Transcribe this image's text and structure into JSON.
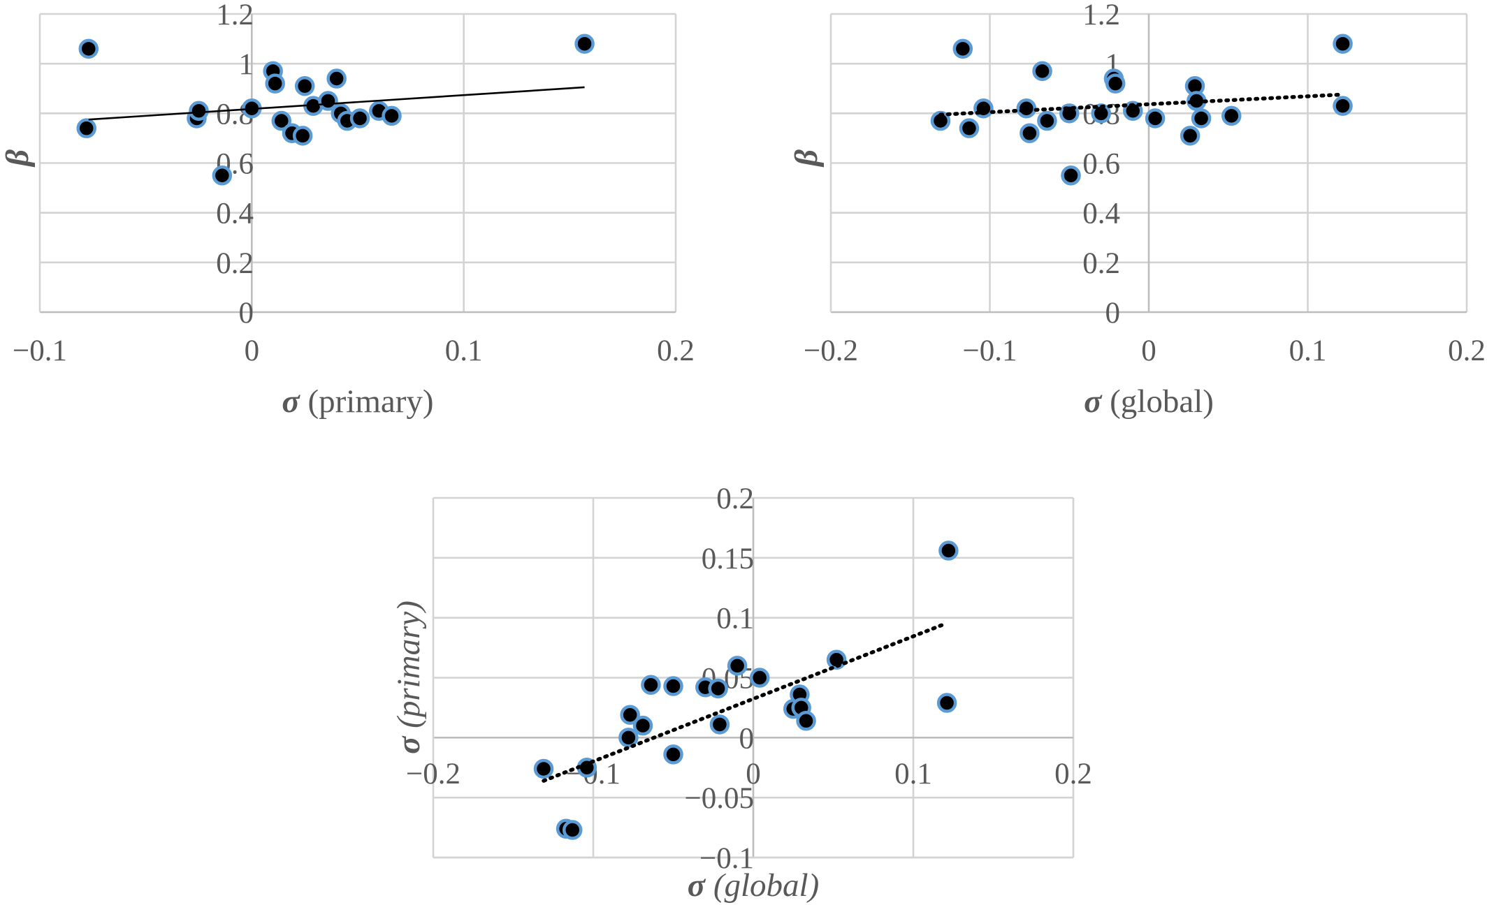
{
  "chart_data": [
    {
      "type": "scatter",
      "xlabel": {
        "symbol": "σ",
        "text": "(primary)"
      },
      "ylabel": "β",
      "xlim": [
        -0.1,
        0.2
      ],
      "ylim": [
        0,
        1.2
      ],
      "x_ticks": [
        -0.1,
        0,
        0.1,
        0.2
      ],
      "x_tick_labels": [
        "−0.1",
        "0",
        "0.1",
        "0.2"
      ],
      "y_ticks": [
        0,
        0.2,
        0.4,
        0.6,
        0.8,
        1,
        1.2
      ],
      "y_tick_labels": [
        "0",
        "0.2",
        "0.4",
        "0.6",
        "0.8",
        "1",
        "1.2"
      ],
      "x_gridlines": [
        0.1,
        0.2
      ],
      "y_gridlines": [
        0.2,
        0.4,
        0.6,
        0.8,
        1,
        1.2
      ],
      "grid": true,
      "points": [
        [
          -0.077,
          1.06
        ],
        [
          -0.078,
          0.74
        ],
        [
          -0.026,
          0.78
        ],
        [
          -0.025,
          0.81
        ],
        [
          -0.014,
          0.55
        ],
        [
          0.0,
          0.82
        ],
        [
          0.01,
          0.97
        ],
        [
          0.011,
          0.92
        ],
        [
          0.014,
          0.77
        ],
        [
          0.019,
          0.72
        ],
        [
          0.024,
          0.71
        ],
        [
          0.025,
          0.91
        ],
        [
          0.029,
          0.83
        ],
        [
          0.036,
          0.85
        ],
        [
          0.04,
          0.94
        ],
        [
          0.042,
          0.8
        ],
        [
          0.045,
          0.77
        ],
        [
          0.051,
          0.78
        ],
        [
          0.06,
          0.81
        ],
        [
          0.066,
          0.79
        ],
        [
          0.157,
          1.08
        ]
      ],
      "trendline": {
        "style": "solid",
        "from": [
          -0.077,
          0.775
        ],
        "to": [
          0.157,
          0.905
        ]
      }
    },
    {
      "type": "scatter",
      "xlabel": {
        "symbol": "σ",
        "text": "(global)"
      },
      "ylabel": "β",
      "xlim": [
        -0.2,
        0.2
      ],
      "ylim": [
        0,
        1.2
      ],
      "x_ticks": [
        -0.2,
        -0.1,
        0,
        0.1,
        0.2
      ],
      "x_tick_labels": [
        "−0.2",
        "−0.1",
        "0",
        "0.1",
        "0.2"
      ],
      "y_ticks": [
        0,
        0.2,
        0.4,
        0.6,
        0.8,
        1,
        1.2
      ],
      "y_tick_labels": [
        "0",
        "0.2",
        "0.4",
        "0.6",
        "0.8",
        "1",
        "1.2"
      ],
      "x_gridlines": [
        -0.1,
        0.1,
        0.2
      ],
      "y_gridlines": [
        0.2,
        0.4,
        0.6,
        0.8,
        1,
        1.2
      ],
      "grid": true,
      "points": [
        [
          -0.131,
          0.77
        ],
        [
          -0.117,
          1.06
        ],
        [
          -0.113,
          0.74
        ],
        [
          -0.104,
          0.82
        ],
        [
          -0.077,
          0.82
        ],
        [
          -0.075,
          0.72
        ],
        [
          -0.067,
          0.97
        ],
        [
          -0.064,
          0.77
        ],
        [
          -0.05,
          0.8
        ],
        [
          -0.049,
          0.55
        ],
        [
          -0.03,
          0.8
        ],
        [
          -0.022,
          0.94
        ],
        [
          -0.021,
          0.92
        ],
        [
          -0.01,
          0.81
        ],
        [
          0.004,
          0.78
        ],
        [
          0.026,
          0.71
        ],
        [
          0.029,
          0.91
        ],
        [
          0.03,
          0.85
        ],
        [
          0.033,
          0.78
        ],
        [
          0.052,
          0.79
        ],
        [
          0.122,
          1.08
        ],
        [
          0.122,
          0.83
        ]
      ],
      "trendline": {
        "style": "dotted",
        "from": [
          -0.131,
          0.795
        ],
        "to": [
          0.12,
          0.875
        ]
      }
    },
    {
      "type": "scatter",
      "xlabel": {
        "symbol": "σ",
        "text": "(global)"
      },
      "ylabel": {
        "symbol": "σ",
        "text": "(primary)"
      },
      "xlim": [
        -0.2,
        0.2
      ],
      "ylim": [
        -0.1,
        0.2
      ],
      "x_ticks": [
        -0.2,
        -0.1,
        0,
        0.1,
        0.2
      ],
      "x_tick_labels": [
        "−0.2",
        "−0.1",
        "0",
        "0.1",
        "0.2"
      ],
      "y_ticks": [
        -0.1,
        -0.05,
        0,
        0.05,
        0.1,
        0.15,
        0.2
      ],
      "y_tick_labels": [
        "−0.1",
        "−0.05",
        "0",
        "0.05",
        "0.1",
        "0.15",
        "0.2"
      ],
      "x_gridlines": [
        -0.1,
        0.1,
        0.2
      ],
      "y_gridlines": [
        -0.1,
        -0.05,
        0.05,
        0.1,
        0.15,
        0.2
      ],
      "grid": true,
      "points": [
        [
          -0.131,
          -0.026
        ],
        [
          -0.117,
          -0.076
        ],
        [
          -0.113,
          -0.077
        ],
        [
          -0.104,
          -0.025
        ],
        [
          -0.077,
          0.019
        ],
        [
          -0.078,
          0.0
        ],
        [
          -0.069,
          0.01
        ],
        [
          -0.064,
          0.044
        ],
        [
          -0.05,
          0.043
        ],
        [
          -0.05,
          -0.014
        ],
        [
          -0.03,
          0.042
        ],
        [
          -0.022,
          0.041
        ],
        [
          -0.021,
          0.011
        ],
        [
          -0.01,
          0.06
        ],
        [
          0.004,
          0.05
        ],
        [
          0.025,
          0.024
        ],
        [
          0.029,
          0.036
        ],
        [
          0.03,
          0.025
        ],
        [
          0.033,
          0.014
        ],
        [
          0.052,
          0.065
        ],
        [
          0.122,
          0.156
        ],
        [
          0.121,
          0.029
        ]
      ],
      "trendline": {
        "style": "dotted",
        "from": [
          -0.131,
          -0.036
        ],
        "to": [
          0.12,
          0.095
        ]
      }
    }
  ]
}
